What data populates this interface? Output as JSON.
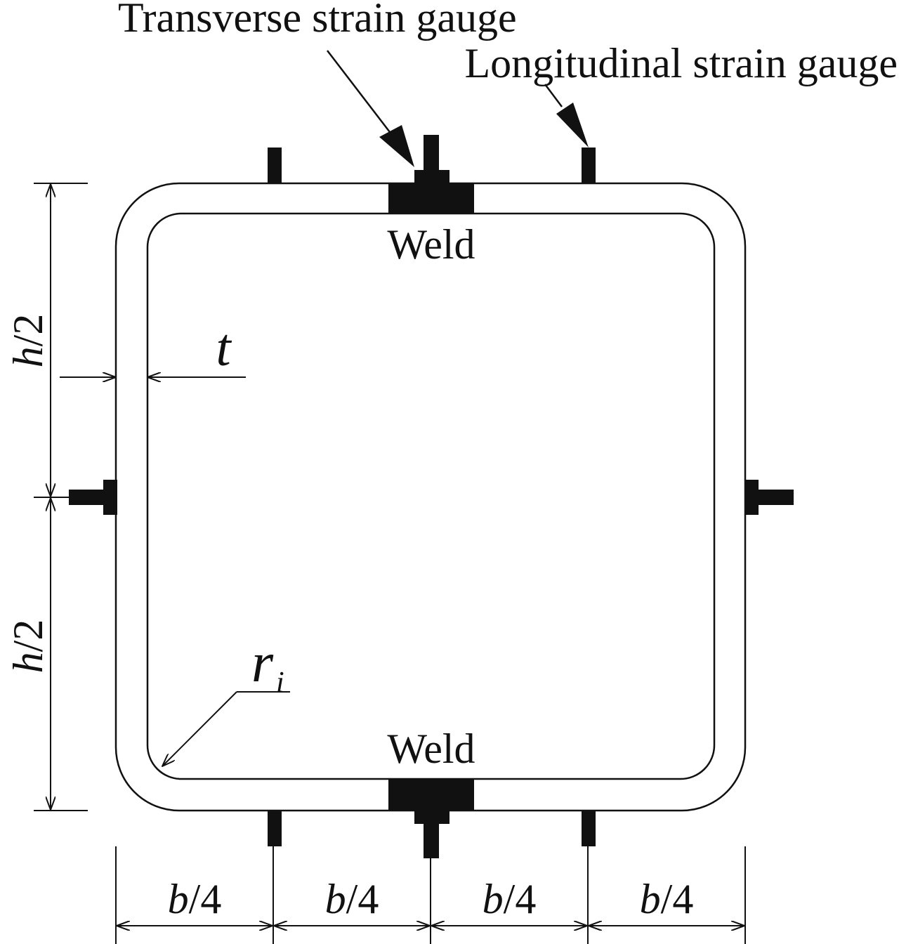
{
  "labels": {
    "transverse_gauge": "Transverse strain gauge",
    "longitudinal_gauge": "Longitudinal strain gauge",
    "weld_top": "Weld",
    "weld_bottom": "Weld",
    "thickness": "t",
    "inner_radius": "r",
    "inner_radius_sub": "i",
    "height_half_top": "h",
    "height_half_top_rest": "/2",
    "height_half_bottom": "h",
    "height_half_bottom_rest": "/2",
    "width_quarter_1": "b",
    "width_quarter_1_rest": "/4",
    "width_quarter_2": "b",
    "width_quarter_2_rest": "/4",
    "width_quarter_3": "b",
    "width_quarter_3_rest": "/4",
    "width_quarter_4": "b",
    "width_quarter_4_rest": "/4"
  },
  "colors": {
    "ink": "#111111",
    "background": "#ffffff"
  }
}
